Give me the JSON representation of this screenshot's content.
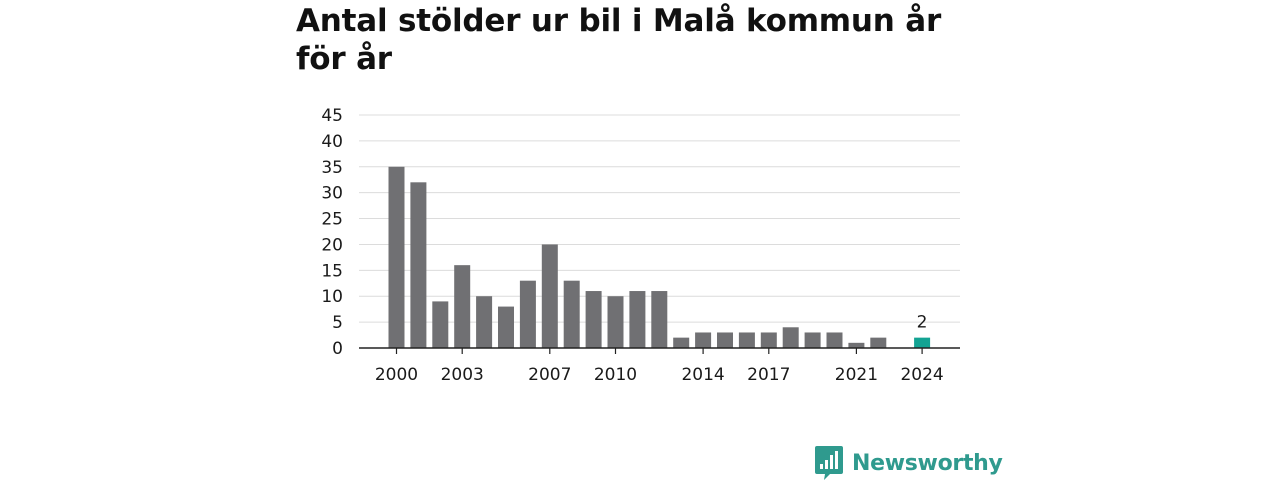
{
  "colors": {
    "bar": "#707073",
    "highlight": "#13a393",
    "brand": "#2f9a8e",
    "grid": "#dcdcdc",
    "axis": "#222222"
  },
  "brand": {
    "name": "Newsworthy",
    "icon": "newsworthy-logo-icon"
  },
  "chart_data": {
    "type": "bar",
    "title": "Antal stölder ur bil i Malå kommun år för år",
    "xlabel": "",
    "ylabel": "",
    "ylim": [
      0,
      45
    ],
    "yticks": [
      0,
      5,
      10,
      15,
      20,
      25,
      30,
      35,
      40,
      45
    ],
    "grid": true,
    "legend": "none",
    "categories": [
      "2000",
      "2001",
      "2002",
      "2003",
      "2004",
      "2005",
      "2006",
      "2007",
      "2008",
      "2009",
      "2010",
      "2011",
      "2012",
      "2013",
      "2014",
      "2015",
      "2016",
      "2017",
      "2018",
      "2019",
      "2020",
      "2021",
      "2022",
      "2023",
      "2024"
    ],
    "values": [
      35,
      32,
      9,
      16,
      10,
      8,
      13,
      20,
      13,
      11,
      10,
      11,
      11,
      2,
      3,
      3,
      3,
      3,
      4,
      3,
      3,
      1,
      2,
      null,
      2
    ],
    "xtick_labels": [
      "2000",
      "2003",
      "2007",
      "2010",
      "2014",
      "2017",
      "2021",
      "2024"
    ],
    "highlight": {
      "category": "2024",
      "label": "2"
    }
  }
}
